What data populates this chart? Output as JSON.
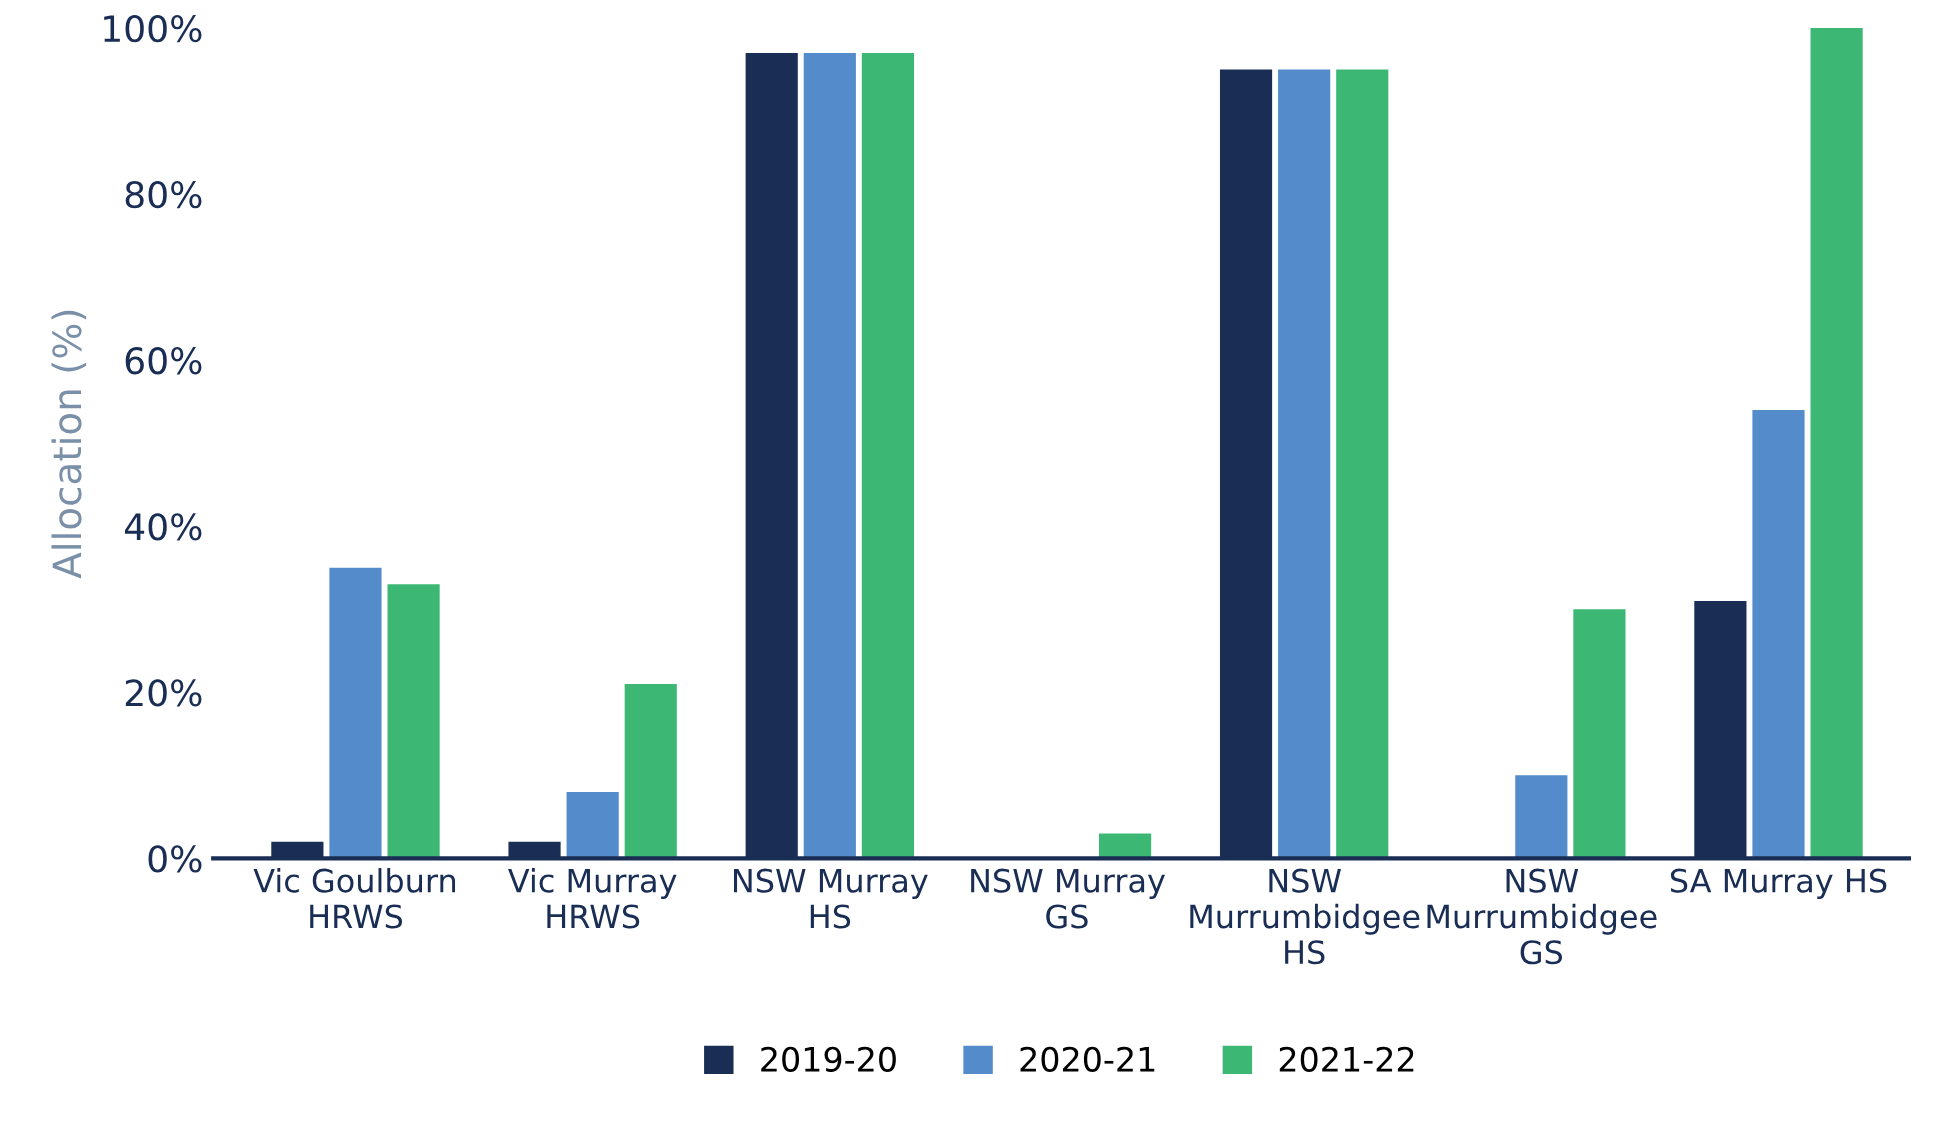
{
  "chart_data": {
    "type": "bar",
    "ylabel": "Allocation (%)",
    "categories": [
      "Vic Goulburn\nHRWS",
      "Vic Murray\nHRWS",
      "NSW Murray\nHS",
      "NSW Murray\nGS",
      "NSW\nMurrumbidgee\nHS",
      "NSW\nMurrumbidgee\nGS",
      "SA Murray HS"
    ],
    "series": [
      {
        "name": "2019-20",
        "color": "#1a2e55",
        "values": [
          2,
          2,
          97,
          0,
          95,
          0,
          31
        ]
      },
      {
        "name": "2020-21",
        "color": "#548bca",
        "values": [
          35,
          8,
          97,
          0,
          95,
          10,
          54
        ]
      },
      {
        "name": "2021-22",
        "color": "#3db874",
        "values": [
          33,
          21,
          97,
          3,
          95,
          30,
          100
        ]
      }
    ],
    "ylim": [
      0,
      100
    ],
    "yticks": [
      {
        "value": 0,
        "label": "0%"
      },
      {
        "value": 20,
        "label": "20%"
      },
      {
        "value": 40,
        "label": "40%"
      },
      {
        "value": 60,
        "label": "60%"
      },
      {
        "value": 80,
        "label": "80%"
      },
      {
        "value": 100,
        "label": "100%"
      }
    ],
    "grid": false,
    "legend": "bottom"
  }
}
